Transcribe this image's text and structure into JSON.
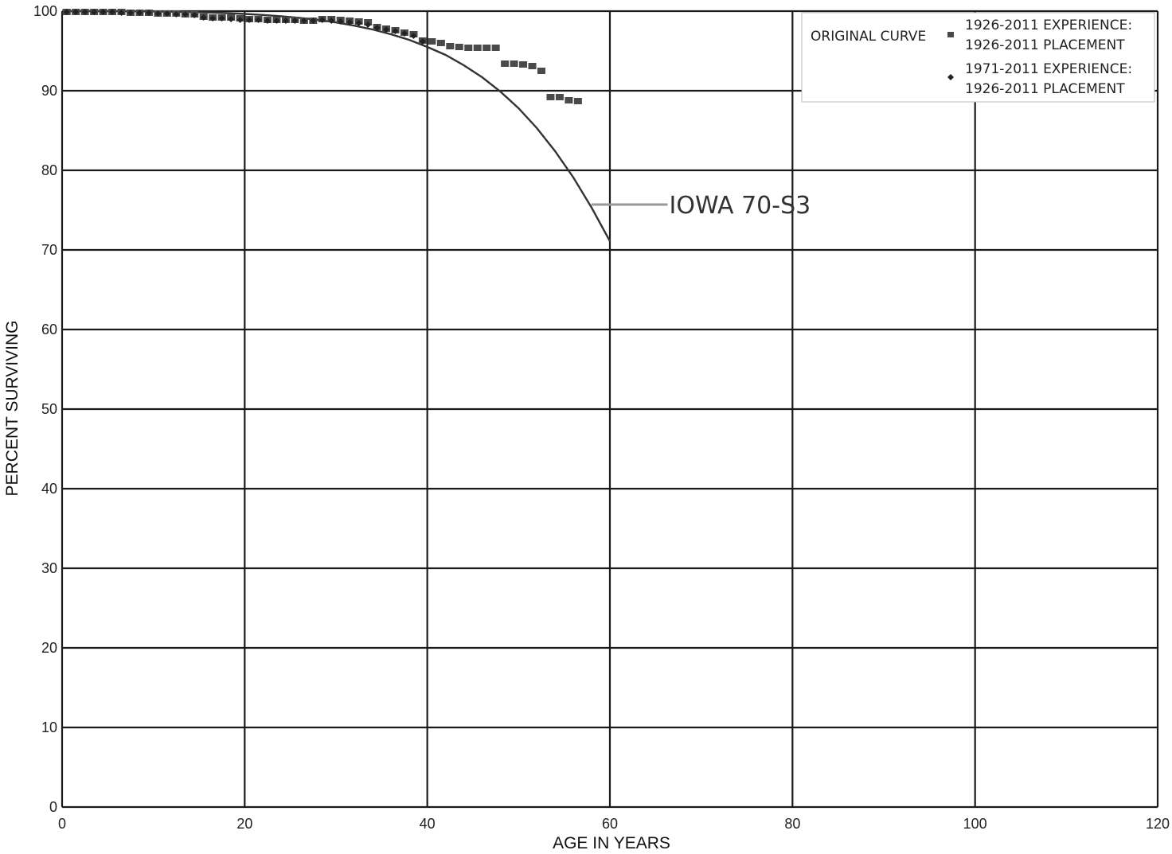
{
  "chart_data": {
    "type": "scatter",
    "xlabel": "AGE IN YEARS",
    "ylabel": "PERCENT SURVIVING",
    "xlim": [
      0,
      120
    ],
    "ylim": [
      0,
      100
    ],
    "x_ticks": [
      0,
      20,
      40,
      60,
      80,
      100,
      120
    ],
    "y_ticks": [
      0,
      10,
      20,
      30,
      40,
      50,
      60,
      70,
      80,
      90,
      100
    ],
    "grid": true,
    "legend": {
      "placement": "top-right",
      "entries": [
        {
          "label_lines": [
            "ORIGINAL CURVE"
          ],
          "marker": "none"
        },
        {
          "label_lines": [
            "1926-2011 EXPERIENCE:",
            "1926-2011 PLACEMENT"
          ],
          "marker": "square"
        },
        {
          "label_lines": [
            "1971-2011 EXPERIENCE:",
            "1926-2011 PLACEMENT"
          ],
          "marker": "diamond"
        }
      ]
    },
    "annotations": [
      {
        "text": "IOWA 70-S3",
        "x": 66.5,
        "y": 75.7,
        "leader_from": [
          58,
          75.7
        ]
      }
    ],
    "series": [
      {
        "label": "ORIGINAL CURVE",
        "kind": "line",
        "color": "#333333",
        "x": [
          0,
          2,
          4,
          6,
          8,
          10,
          12,
          14,
          16,
          18,
          20,
          22,
          24,
          26,
          28,
          30,
          32,
          34,
          36,
          38,
          40,
          42,
          44,
          46,
          48,
          50,
          52,
          54,
          56,
          58,
          60
        ],
        "y": [
          100,
          100,
          100,
          99.99,
          99.98,
          99.96,
          99.93,
          99.89,
          99.83,
          99.75,
          99.65,
          99.52,
          99.36,
          99.16,
          98.9,
          98.58,
          98.18,
          97.7,
          97.1,
          96.4,
          95.5,
          94.5,
          93.2,
          91.7,
          89.9,
          87.8,
          85.3,
          82.4,
          79.1,
          75.3,
          71.1
        ]
      },
      {
        "label": "1926-2011 EXPERIENCE: 1926-2011 PLACEMENT",
        "kind": "marker",
        "marker": "square",
        "color": "#4a4a4a",
        "x": [
          0.5,
          1.5,
          2.5,
          3.5,
          4.5,
          5.5,
          6.5,
          7.5,
          8.5,
          9.5,
          10.5,
          11.5,
          12.5,
          13.5,
          14.5,
          15.5,
          16.5,
          17.5,
          18.5,
          19.5,
          20.5,
          21.5,
          22.5,
          23.5,
          24.5,
          25.5,
          26.5,
          27.5,
          28.5,
          29.5,
          30.5,
          31.5,
          32.5,
          33.5,
          34.5,
          35.5,
          36.5,
          37.5,
          38.5,
          39.5,
          40.5,
          41.5,
          42.5,
          43.5,
          44.5,
          45.5,
          46.5,
          47.5,
          48.5,
          49.5,
          50.5,
          51.5,
          52.5,
          53.5,
          54.5,
          55.5,
          56.5
        ],
        "y": [
          99.9,
          99.9,
          99.9,
          99.9,
          99.9,
          99.9,
          99.9,
          99.8,
          99.8,
          99.8,
          99.7,
          99.7,
          99.7,
          99.6,
          99.6,
          99.3,
          99.2,
          99.2,
          99.2,
          99.1,
          99.0,
          99.0,
          98.9,
          98.9,
          98.9,
          98.9,
          98.8,
          98.8,
          99.0,
          99.0,
          98.9,
          98.8,
          98.7,
          98.6,
          98.0,
          97.8,
          97.6,
          97.3,
          97.1,
          96.3,
          96.2,
          96.0,
          95.6,
          95.5,
          95.4,
          95.4,
          95.4,
          95.4,
          93.4,
          93.4,
          93.3,
          93.1,
          92.5,
          89.2,
          89.2,
          88.8,
          88.7
        ]
      },
      {
        "label": "1971-2011 EXPERIENCE: 1926-2011 PLACEMENT",
        "kind": "marker",
        "marker": "diamond",
        "color": "#4a4a4a",
        "x": [
          0.5,
          1.5,
          2.5,
          3.5,
          4.5,
          5.5,
          6.5,
          7.5,
          8.5,
          9.5,
          10.5,
          11.5,
          12.5,
          13.5,
          14.5,
          15.5,
          16.5,
          17.5,
          18.5,
          19.5,
          20.5,
          21.5,
          22.5,
          23.5,
          24.5,
          25.5,
          26.5,
          27.5,
          28.5,
          29.5,
          30.5,
          31.5,
          32.5,
          33.5,
          34.5,
          35.5,
          36.5,
          37.5,
          38.5,
          39.5
        ],
        "y": [
          99.9,
          99.9,
          99.9,
          99.9,
          99.9,
          99.9,
          99.8,
          99.8,
          99.8,
          99.8,
          99.7,
          99.7,
          99.6,
          99.6,
          99.5,
          99.2,
          99.1,
          99.1,
          99.0,
          98.9,
          98.9,
          98.9,
          98.8,
          98.8,
          98.8,
          98.8,
          98.8,
          98.8,
          98.9,
          98.8,
          98.7,
          98.6,
          98.5,
          98.3,
          97.9,
          97.7,
          97.5,
          97.2,
          96.9,
          96.2
        ]
      }
    ]
  }
}
